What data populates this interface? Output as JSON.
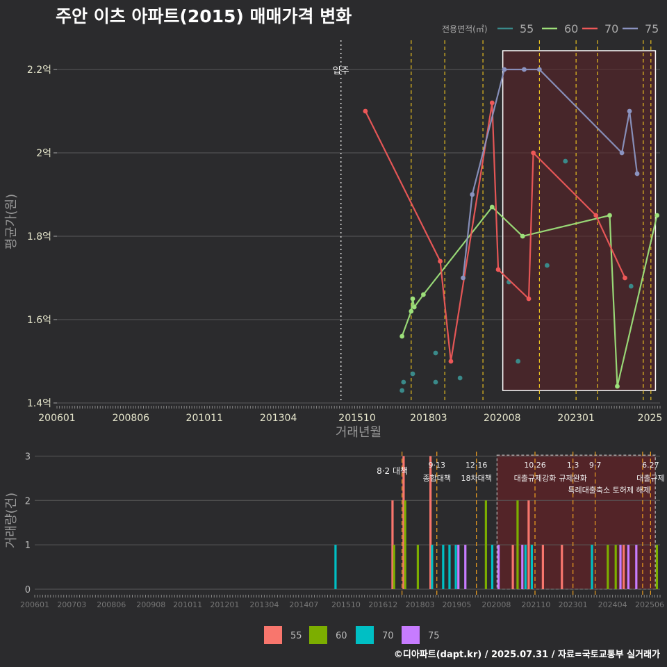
{
  "title": "주안 이츠 아파트(2015) 매매가격 변화",
  "credit": "©디아파트(dapt.kr) / 2025.07.31 / 자료=국토교통부 실거래가",
  "colors": {
    "background": "#2b2b2d",
    "grid": "#5a5a5a",
    "policy_line": "#e8c020",
    "policy_line_bottom": "#f0a020",
    "highlight_fill": "#5a2328",
    "s55": "#3a8a8a",
    "s60": "#9de07a",
    "s70": "#ee5858",
    "s75": "#8b93c0",
    "bar55": "#f8766d",
    "bar60": "#7cae00",
    "bar70": "#00bfc4",
    "bar75": "#c77cff"
  },
  "chart_data": [
    {
      "id": "price",
      "type": "line",
      "title": "주안 이츠 아파트(2015) 매매가격 변화",
      "xlabel": "거래년월",
      "ylabel": "평균가(원)",
      "ylim": [
        1.4,
        2.27
      ],
      "yticks": [
        1.4,
        1.6,
        1.8,
        2.0,
        2.2
      ],
      "ytick_labels": [
        "1.4억",
        "1.6억",
        "1.8억",
        "2억",
        "2.2억"
      ],
      "xlim": [
        2006.0,
        2025.75
      ],
      "xticks": [
        2006.0,
        2008.42,
        2010.83,
        2013.25,
        2015.83,
        2018.17,
        2020.58,
        2023.0,
        2025.42
      ],
      "xtick_labels": [
        "200601",
        "200806",
        "201011",
        "201304",
        "201510",
        "201803",
        "202008",
        "202301",
        "2025"
      ],
      "legend_title": "전용면적(㎡)",
      "legend": [
        "55",
        "60",
        "70",
        "75"
      ],
      "move_in": {
        "x": 2015.3,
        "label": "입주"
      },
      "policy_lines": [
        2017.6,
        2018.7,
        2019.95,
        2021.8,
        2023.0,
        2023.7,
        2025.2,
        2025.45
      ],
      "highlight": {
        "x0": 2020.6,
        "x1": 2025.6,
        "y0": 1.43,
        "y1": 2.245
      },
      "series": [
        {
          "name": "55",
          "line": false,
          "x": [
            2017.3,
            2017.35,
            2017.65,
            2018.4,
            2018.4,
            2019.2,
            2020.8,
            2021.1,
            2022.05,
            2022.65,
            2024.8
          ],
          "y": [
            1.43,
            1.45,
            1.47,
            1.45,
            1.52,
            1.46,
            1.69,
            1.5,
            1.73,
            1.98,
            1.68
          ]
        },
        {
          "name": "60",
          "line": true,
          "x": [
            2017.3,
            2017.6,
            2017.65,
            2017.7,
            2018.0,
            2020.25,
            2021.25,
            2024.1,
            2024.35,
            2025.65
          ],
          "y": [
            1.56,
            1.62,
            1.65,
            1.63,
            1.66,
            1.87,
            1.8,
            1.85,
            1.44,
            1.85
          ]
        },
        {
          "name": "70",
          "line": true,
          "x": [
            2016.1,
            2018.55,
            2018.9,
            2020.25,
            2020.45,
            2021.45,
            2021.6,
            2023.65,
            2024.6
          ],
          "y": [
            2.1,
            1.74,
            1.5,
            2.12,
            1.72,
            1.65,
            2.0,
            1.85,
            1.7
          ]
        },
        {
          "name": "75",
          "line": true,
          "x": [
            2019.3,
            2019.6,
            2020.65,
            2021.3,
            2021.8,
            2024.5,
            2024.75,
            2025.0
          ],
          "y": [
            1.7,
            1.9,
            2.2,
            2.2,
            2.2,
            2.0,
            2.1,
            1.95
          ]
        }
      ]
    },
    {
      "id": "volume",
      "type": "bar",
      "ylabel": "거래량(건)",
      "ylim": [
        0,
        3.1
      ],
      "yticks": [
        0,
        1,
        2,
        3
      ],
      "xlim": [
        2006.0,
        2025.75
      ],
      "xticks": [
        2006.0,
        2007.17,
        2008.42,
        2009.67,
        2010.83,
        2012.0,
        2013.25,
        2014.5,
        2015.83,
        2017.0,
        2018.17,
        2019.33,
        2020.58,
        2021.83,
        2023.0,
        2024.25,
        2025.42
      ],
      "xtick_labels": [
        "200601",
        "200703",
        "200806",
        "200908",
        "201011",
        "201201",
        "201304",
        "201407",
        "201510",
        "201612",
        "201803",
        "201905",
        "202008",
        "202110",
        "202301",
        "202404",
        "202506"
      ],
      "legend": [
        "55",
        "60",
        "70",
        "75"
      ],
      "highlight": {
        "x0": 2020.6,
        "x1": 2025.6
      },
      "policy_lines": [
        2017.6,
        2018.7,
        2019.95,
        2021.8,
        2023.0,
        2023.7,
        2025.2,
        2025.45
      ],
      "bars": [
        {
          "x": 2015.5,
          "v": 1,
          "s": "70"
        },
        {
          "x": 2017.3,
          "v": 2,
          "s": "55"
        },
        {
          "x": 2017.35,
          "v": 1,
          "s": "60"
        },
        {
          "x": 2017.65,
          "v": 3,
          "s": "55"
        },
        {
          "x": 2017.7,
          "v": 2,
          "s": "60"
        },
        {
          "x": 2018.1,
          "v": 1,
          "s": "60"
        },
        {
          "x": 2018.5,
          "v": 3,
          "s": "55"
        },
        {
          "x": 2018.55,
          "v": 1,
          "s": "70"
        },
        {
          "x": 2018.9,
          "v": 1,
          "s": "70"
        },
        {
          "x": 2019.1,
          "v": 1,
          "s": "70"
        },
        {
          "x": 2019.3,
          "v": 1,
          "s": "70"
        },
        {
          "x": 2019.38,
          "v": 1,
          "s": "75"
        },
        {
          "x": 2019.6,
          "v": 1,
          "s": "75"
        },
        {
          "x": 2020.25,
          "v": 2,
          "s": "60"
        },
        {
          "x": 2020.45,
          "v": 1,
          "s": "70"
        },
        {
          "x": 2020.65,
          "v": 1,
          "s": "75"
        },
        {
          "x": 2021.1,
          "v": 1,
          "s": "55"
        },
        {
          "x": 2021.25,
          "v": 2,
          "s": "60"
        },
        {
          "x": 2021.4,
          "v": 1,
          "s": "75"
        },
        {
          "x": 2021.5,
          "v": 1,
          "s": "70"
        },
        {
          "x": 2021.6,
          "v": 2,
          "s": "55"
        },
        {
          "x": 2021.7,
          "v": 1,
          "s": "70"
        },
        {
          "x": 2022.05,
          "v": 1,
          "s": "55"
        },
        {
          "x": 2022.65,
          "v": 1,
          "s": "55"
        },
        {
          "x": 2023.6,
          "v": 1,
          "s": "70"
        },
        {
          "x": 2024.1,
          "v": 1,
          "s": "60"
        },
        {
          "x": 2024.35,
          "v": 1,
          "s": "60"
        },
        {
          "x": 2024.5,
          "v": 1,
          "s": "75"
        },
        {
          "x": 2024.6,
          "v": 1,
          "s": "55"
        },
        {
          "x": 2024.75,
          "v": 1,
          "s": "75"
        },
        {
          "x": 2025.0,
          "v": 1,
          "s": "75"
        },
        {
          "x": 2025.65,
          "v": 1,
          "s": "60"
        }
      ],
      "annotations": [
        {
          "x": 2017.6,
          "lines": [
            "8·2 대책"
          ],
          "top": false
        },
        {
          "x": 2018.7,
          "lines": [
            "9·13",
            "종합대책"
          ],
          "top": true
        },
        {
          "x": 2019.95,
          "lines": [
            "12·16",
            "18차대책"
          ],
          "top": true
        },
        {
          "x": 2021.8,
          "lines": [
            "10.26",
            "대출규제강화"
          ],
          "top": true
        },
        {
          "x": 2023.0,
          "lines": [
            "1.3",
            "규제완화"
          ],
          "top": true
        },
        {
          "x": 2023.7,
          "lines": [
            "9·7",
            "특례대출축소 토허제 해제"
          ],
          "top": true
        },
        {
          "x": 2025.45,
          "lines": [
            "6.27",
            "대출규제"
          ],
          "top": true
        }
      ]
    }
  ]
}
